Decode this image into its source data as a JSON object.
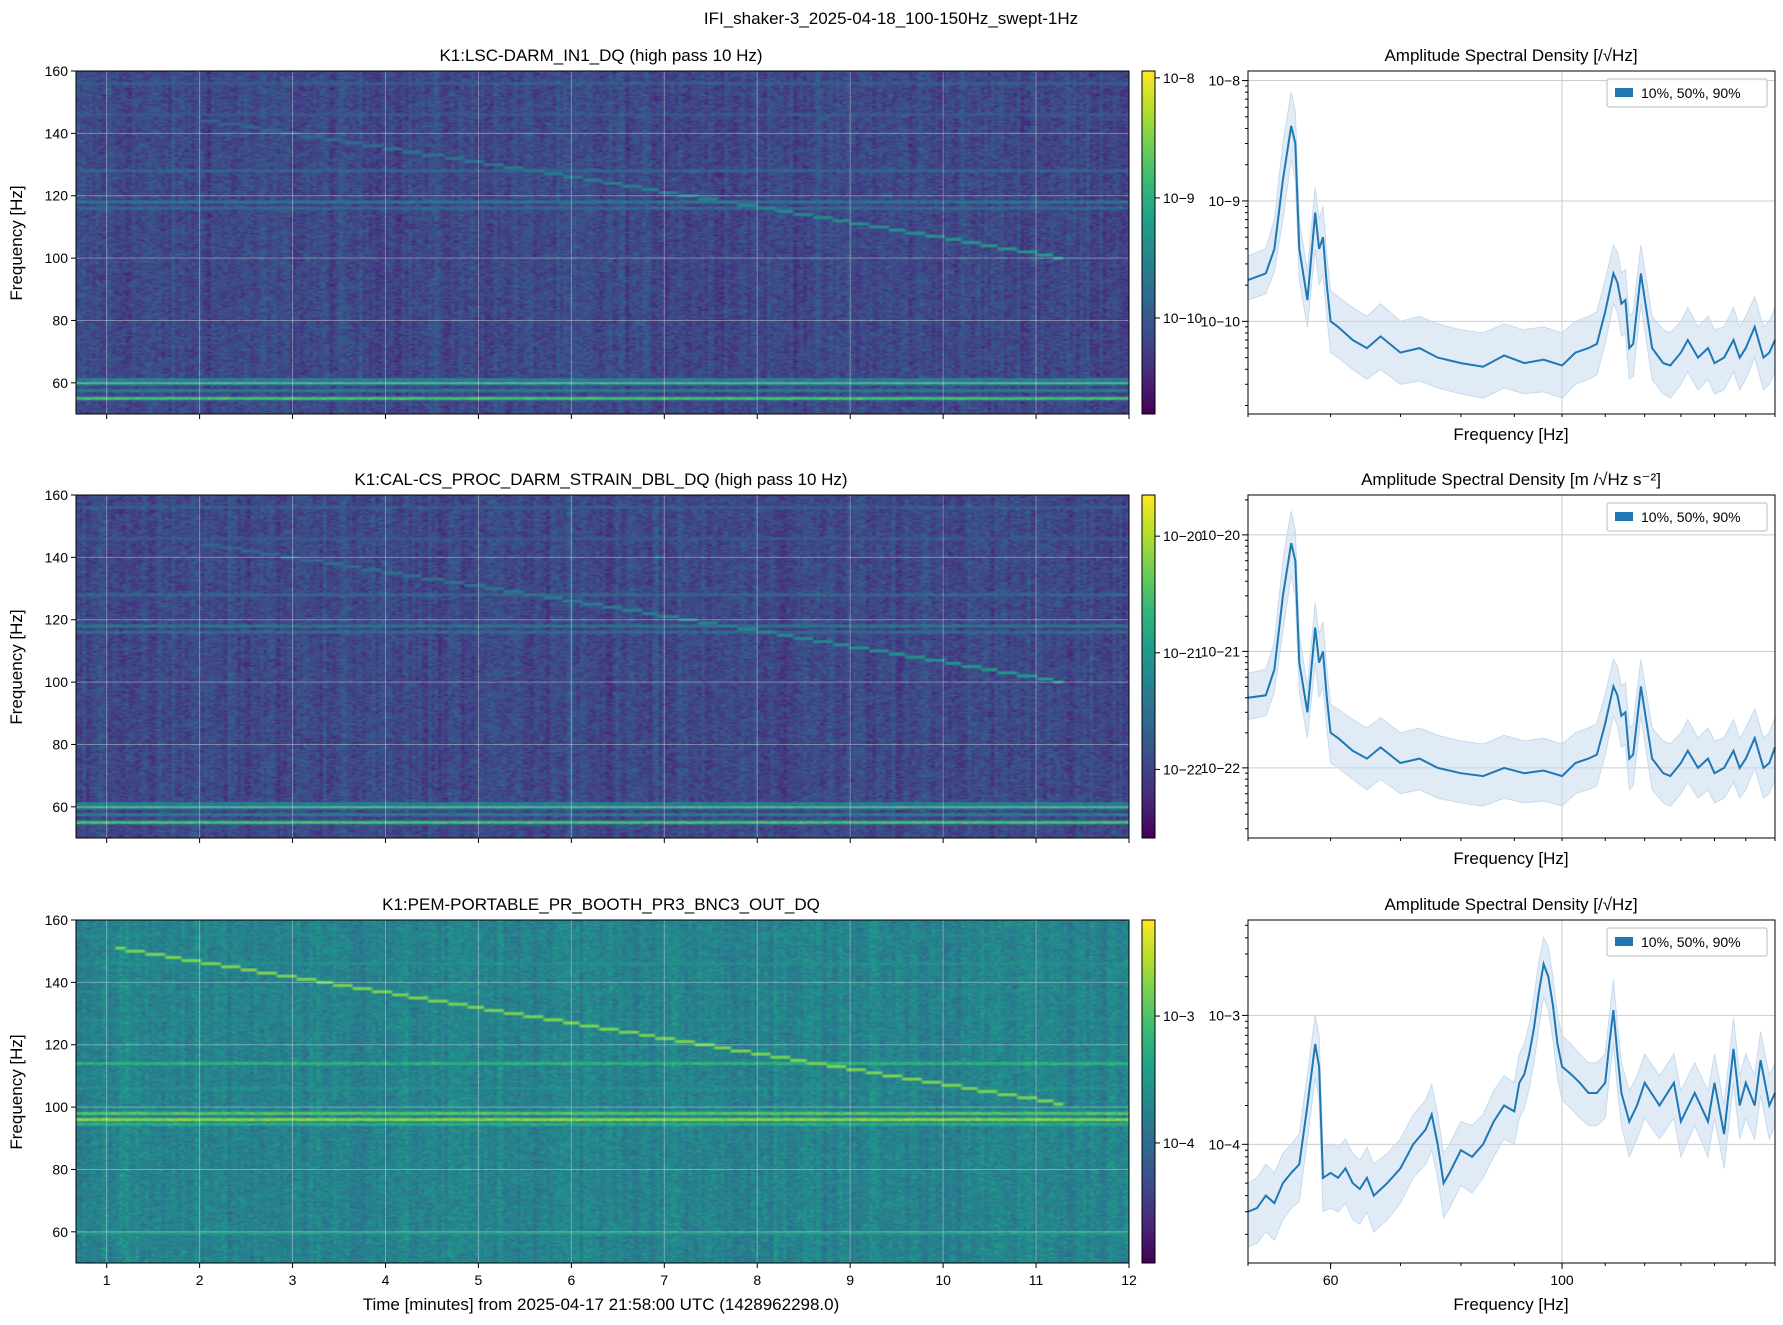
{
  "figure": {
    "suptitle": "IFI_shaker-3_2025-04-18_100-150Hz_swept-1Hz"
  },
  "colors": {
    "viridis_dark": "#440154",
    "viridis_mid": "#21918c",
    "viridis_bright": "#fde725",
    "asd_line": "#1f77b4",
    "asd_band": "#c6dbef",
    "grid": "#cccccc"
  },
  "chart_data": [
    {
      "type": "heatmap",
      "id": "spec1",
      "title": "K1:LSC-DARM_IN1_DQ (high pass 10 Hz)",
      "ylabel": "Frequency [Hz]",
      "xlabel": "",
      "xlim": [
        0.67,
        12.0
      ],
      "ylim": [
        50,
        160
      ],
      "xticks": [
        "1",
        "2",
        "3",
        "4",
        "5",
        "6",
        "7",
        "8",
        "9",
        "10",
        "11",
        "12"
      ],
      "yticks": [
        "60",
        "80",
        "100",
        "120",
        "140",
        "160"
      ],
      "colorbar": {
        "scale": "log",
        "ticks": [
          "10−8",
          "10−9",
          "10−10"
        ]
      },
      "lines": [
        {
          "f": 55,
          "level": 0.78
        },
        {
          "f": 59.8,
          "level": 0.62
        },
        {
          "f": 57.5,
          "level": 0.45
        },
        {
          "f": 61,
          "level": 0.5
        },
        {
          "f": 118,
          "level": 0.42
        },
        {
          "f": 116,
          "level": 0.38
        },
        {
          "f": 128,
          "level": 0.36
        },
        {
          "f": 146,
          "level": 0.3
        },
        {
          "f": 156,
          "level": 0.32
        }
      ],
      "sweep": [
        [
          2.0,
          144.5
        ],
        [
          5.6,
          128
        ],
        [
          8.3,
          115
        ],
        [
          11.3,
          100
        ]
      ],
      "sweep_level_start": 0.38,
      "sweep_level_end": 0.65,
      "noise_level": 0.22
    },
    {
      "type": "heatmap",
      "id": "spec2",
      "title": "K1:CAL-CS_PROC_DARM_STRAIN_DBL_DQ (high pass 10 Hz)",
      "ylabel": "Frequency [Hz]",
      "xlabel": "",
      "xlim": [
        0.67,
        12.0
      ],
      "ylim": [
        50,
        160
      ],
      "xticks": [
        "1",
        "2",
        "3",
        "4",
        "5",
        "6",
        "7",
        "8",
        "9",
        "10",
        "11",
        "12"
      ],
      "yticks": [
        "60",
        "80",
        "100",
        "120",
        "140",
        "160"
      ],
      "colorbar": {
        "scale": "log",
        "ticks": [
          "10−20",
          "10−21",
          "10−22"
        ]
      },
      "lines": [
        {
          "f": 55,
          "level": 0.78
        },
        {
          "f": 59.8,
          "level": 0.62
        },
        {
          "f": 57.5,
          "level": 0.45
        },
        {
          "f": 61,
          "level": 0.5
        },
        {
          "f": 118,
          "level": 0.42
        },
        {
          "f": 116,
          "level": 0.38
        },
        {
          "f": 128,
          "level": 0.36
        },
        {
          "f": 146,
          "level": 0.3
        },
        {
          "f": 156,
          "level": 0.32
        }
      ],
      "sweep": [
        [
          2.0,
          144.5
        ],
        [
          5.6,
          128
        ],
        [
          8.3,
          115
        ],
        [
          11.3,
          100
        ]
      ],
      "sweep_level_start": 0.38,
      "sweep_level_end": 0.65,
      "noise_level": 0.22
    },
    {
      "type": "heatmap",
      "id": "spec3",
      "title": "K1:PEM-PORTABLE_PR_BOOTH_PR3_BNC3_OUT_DQ",
      "ylabel": "Frequency [Hz]",
      "xlabel": "Time [minutes] from 2025-04-17 21:58:00 UTC (1428962298.0)",
      "xlim": [
        0.67,
        12.0
      ],
      "ylim": [
        50,
        160
      ],
      "xticks": [
        "1",
        "2",
        "3",
        "4",
        "5",
        "6",
        "7",
        "8",
        "9",
        "10",
        "11",
        "12"
      ],
      "yticks": [
        "60",
        "80",
        "100",
        "120",
        "140",
        "160"
      ],
      "colorbar": {
        "scale": "log",
        "ticks": [
          "10−3",
          "10−4"
        ]
      },
      "lines": [
        {
          "f": 96,
          "level": 0.92
        },
        {
          "f": 98,
          "level": 0.82
        },
        {
          "f": 94.5,
          "level": 0.7
        },
        {
          "f": 114,
          "level": 0.72
        },
        {
          "f": 59.5,
          "level": 0.6
        },
        {
          "f": 146,
          "level": 0.55
        },
        {
          "f": 137,
          "level": 0.5
        },
        {
          "f": 128,
          "level": 0.5
        },
        {
          "f": 106,
          "level": 0.55
        },
        {
          "f": 84,
          "level": 0.45
        },
        {
          "f": 77,
          "level": 0.42
        },
        {
          "f": 155,
          "level": 0.5
        }
      ],
      "sweep": [
        [
          1.1,
          151
        ],
        [
          11.3,
          101
        ]
      ],
      "sweep_level_start": 0.97,
      "sweep_level_end": 0.97,
      "noise_level": 0.45
    },
    {
      "type": "area",
      "id": "asd1",
      "title": "Amplitude Spectral Density [/√Hz]",
      "xlabel": "Frequency [Hz]",
      "xscale": "log",
      "yscale": "log",
      "xlim": [
        50,
        160
      ],
      "ylim": [
        1.7e-11,
        1.2e-08
      ],
      "xticks": [],
      "yticks": [
        "10−8",
        "10−9",
        "10−10"
      ],
      "legend": {
        "label": "10%, 50%, 90%",
        "loc": "upper right"
      },
      "x": [
        50,
        52,
        53,
        54,
        55,
        55.5,
        56,
        57,
        58,
        58.5,
        59,
        59.5,
        60,
        61,
        63,
        65,
        67,
        70,
        73,
        76,
        80,
        84,
        88,
        92,
        96,
        100,
        103,
        106,
        108,
        110,
        112,
        113,
        114,
        115,
        116,
        117,
        119,
        122,
        125,
        127,
        130,
        132,
        135,
        138,
        140,
        143,
        146,
        148,
        150,
        153,
        156,
        158,
        160
      ],
      "p50": [
        2.2e-10,
        2.5e-10,
        4e-10,
        1.5e-09,
        4.2e-09,
        3e-09,
        4e-10,
        1.5e-10,
        8e-10,
        4e-10,
        5e-10,
        2e-10,
        1e-10,
        9e-11,
        7e-11,
        6e-11,
        7.5e-11,
        5.5e-11,
        6e-11,
        5e-11,
        4.5e-11,
        4.2e-11,
        5.2e-11,
        4.5e-11,
        4.8e-11,
        4.3e-11,
        5.5e-11,
        6e-11,
        6.5e-11,
        1.2e-10,
        2.5e-10,
        2.1e-10,
        1.4e-10,
        1.5e-10,
        6e-11,
        6.5e-11,
        2.5e-10,
        6e-11,
        4.5e-11,
        4.3e-11,
        5.5e-11,
        7e-11,
        5e-11,
        6e-11,
        4.5e-11,
        5e-11,
        7e-11,
        5e-11,
        6e-11,
        9e-11,
        5e-11,
        5.5e-11,
        7e-11
      ],
      "p10": [
        1.5e-10,
        1.7e-10,
        2.6e-10,
        7e-10,
        2.2e-09,
        1.5e-09,
        2.2e-10,
        9e-11,
        4e-10,
        2e-10,
        2.5e-10,
        1.1e-10,
        5.5e-11,
        5e-11,
        4e-11,
        3.3e-11,
        4e-11,
        3e-11,
        3.2e-11,
        2.8e-11,
        2.5e-11,
        2.3e-11,
        2.8e-11,
        2.5e-11,
        2.6e-11,
        2.3e-11,
        3e-11,
        3.3e-11,
        3.6e-11,
        6.5e-11,
        1.4e-10,
        1.2e-10,
        7.5e-11,
        8e-11,
        3.3e-11,
        3.5e-11,
        1.4e-10,
        3.3e-11,
        2.5e-11,
        2.3e-11,
        3e-11,
        3.8e-11,
        2.7e-11,
        3.3e-11,
        2.5e-11,
        2.7e-11,
        3.8e-11,
        2.7e-11,
        3.3e-11,
        5e-11,
        2.7e-11,
        3e-11,
        3.8e-11
      ],
      "p90": [
        3.5e-10,
        4e-10,
        7e-10,
        3e-09,
        8e-09,
        5.5e-09,
        7e-10,
        2.6e-10,
        1.3e-09,
        7e-10,
        9e-10,
        3.5e-10,
        1.8e-10,
        1.6e-10,
        1.3e-10,
        1.1e-10,
        1.4e-10,
        1e-10,
        1.1e-10,
        9.5e-11,
        8.5e-11,
        8e-11,
        9.5e-11,
        8.5e-11,
        9e-11,
        8e-11,
        1e-10,
        1.1e-10,
        1.2e-10,
        2.2e-10,
        4.3e-10,
        3.8e-10,
        2.5e-10,
        2.7e-10,
        1.1e-10,
        1.2e-10,
        4.3e-10,
        1.1e-10,
        8.5e-11,
        8e-11,
        1e-10,
        1.3e-10,
        9e-11,
        1.1e-10,
        8.5e-11,
        9e-11,
        1.3e-10,
        9e-11,
        1.1e-10,
        1.6e-10,
        9e-11,
        1e-10,
        1.3e-10
      ]
    },
    {
      "type": "area",
      "id": "asd2",
      "title": "Amplitude Spectral Density [m /√Hz s⁻²]",
      "xlabel": "Frequency [Hz]",
      "xscale": "log",
      "yscale": "log",
      "xlim": [
        50,
        160
      ],
      "ylim": [
        2.5e-23,
        2.2e-20
      ],
      "xticks": [],
      "yticks": [
        "10−20",
        "10−21",
        "10−22"
      ],
      "legend": {
        "label": "10%, 50%, 90%",
        "loc": "upper right"
      },
      "x": [
        50,
        52,
        53,
        54,
        55,
        55.5,
        56,
        57,
        58,
        58.5,
        59,
        59.5,
        60,
        61,
        63,
        65,
        67,
        70,
        73,
        76,
        80,
        84,
        88,
        92,
        96,
        100,
        103,
        106,
        108,
        110,
        112,
        113,
        114,
        115,
        116,
        117,
        119,
        122,
        125,
        127,
        130,
        132,
        135,
        138,
        140,
        143,
        146,
        148,
        150,
        153,
        156,
        158,
        160
      ],
      "p50": [
        4e-22,
        4.2e-22,
        7e-22,
        3e-21,
        8.5e-21,
        6e-21,
        8e-22,
        3e-22,
        1.6e-21,
        8e-22,
        1e-21,
        4e-22,
        2e-22,
        1.8e-22,
        1.4e-22,
        1.2e-22,
        1.5e-22,
        1.1e-22,
        1.2e-22,
        1e-22,
        9e-23,
        8.5e-23,
        1e-22,
        9e-23,
        9.5e-23,
        8.5e-23,
        1.1e-22,
        1.2e-22,
        1.3e-22,
        2.4e-22,
        5e-22,
        4.2e-22,
        2.8e-22,
        3e-22,
        1.2e-22,
        1.3e-22,
        5e-22,
        1.2e-22,
        9e-23,
        8.5e-23,
        1.1e-22,
        1.4e-22,
        1e-22,
        1.2e-22,
        9e-23,
        1e-22,
        1.4e-22,
        1e-22,
        1.2e-22,
        1.8e-22,
        1e-22,
        1.1e-22,
        1.5e-22
      ],
      "p10": [
        2.6e-22,
        2.8e-22,
        4.5e-22,
        1.5e-21,
        4.5e-21,
        3e-21,
        4.5e-22,
        1.8e-22,
        8e-22,
        4e-22,
        5e-22,
        2.2e-22,
        1.1e-22,
        1e-22,
        8e-23,
        6.5e-23,
        8e-23,
        6e-23,
        6.5e-23,
        5.5e-23,
        5e-23,
        4.7e-23,
        5.5e-23,
        5e-23,
        5.2e-23,
        4.7e-23,
        6e-23,
        6.5e-23,
        7e-23,
        1.3e-22,
        2.8e-22,
        2.3e-22,
        1.5e-22,
        1.6e-22,
        6.5e-23,
        7e-23,
        2.8e-22,
        6.5e-23,
        5e-23,
        4.7e-23,
        6e-23,
        7.5e-23,
        5.5e-23,
        6.5e-23,
        5e-23,
        5.5e-23,
        7.5e-23,
        5.5e-23,
        6.5e-23,
        1e-22,
        5.5e-23,
        6e-23,
        8e-23
      ],
      "p90": [
        6.5e-22,
        7e-22,
        1.2e-21,
        6e-21,
        1.6e-20,
        1.1e-20,
        1.4e-21,
        5e-22,
        2.6e-21,
        1.4e-21,
        1.8e-21,
        7e-22,
        3.5e-22,
        3.2e-22,
        2.6e-22,
        2.2e-22,
        2.7e-22,
        2e-22,
        2.2e-22,
        1.9e-22,
        1.7e-22,
        1.6e-22,
        1.9e-22,
        1.7e-22,
        1.8e-22,
        1.6e-22,
        2e-22,
        2.2e-22,
        2.4e-22,
        4.3e-22,
        8.5e-22,
        7.5e-22,
        5e-22,
        5.4e-22,
        2.2e-22,
        2.4e-22,
        8.5e-22,
        2.2e-22,
        1.7e-22,
        1.6e-22,
        2e-22,
        2.6e-22,
        1.8e-22,
        2.2e-22,
        1.7e-22,
        1.8e-22,
        2.6e-22,
        1.8e-22,
        2.2e-22,
        3.2e-22,
        1.8e-22,
        2e-22,
        2.7e-22
      ]
    },
    {
      "type": "area",
      "id": "asd3",
      "title": "Amplitude Spectral Density [/√Hz]",
      "xlabel": "Frequency [Hz]",
      "xscale": "log",
      "yscale": "log",
      "xlim": [
        50,
        160
      ],
      "ylim": [
        1.2e-05,
        0.0055
      ],
      "xticks": [
        {
          "v": 60,
          "label": "60"
        },
        {
          "v": 100,
          "label": "100"
        }
      ],
      "yticks": [
        "10−3",
        "10−4"
      ],
      "legend": {
        "label": "10%, 50%, 90%",
        "loc": "upper right"
      },
      "x": [
        50,
        51,
        52,
        53,
        54,
        55,
        56,
        57,
        58,
        58.5,
        59,
        60,
        61,
        62,
        63,
        64,
        65,
        66,
        68,
        70,
        72,
        74,
        75,
        76,
        77,
        78,
        80,
        82,
        84,
        86,
        88,
        90,
        91,
        92,
        93,
        94,
        95,
        96,
        97,
        98,
        99,
        100,
        102,
        104,
        106,
        108,
        110,
        111,
        112,
        113,
        114,
        116,
        118,
        120,
        124,
        128,
        130,
        134,
        138,
        140,
        143,
        146,
        148,
        150,
        153,
        155,
        158,
        160
      ],
      "p50": [
        3e-05,
        3.2e-05,
        4e-05,
        3.5e-05,
        5e-05,
        6e-05,
        7e-05,
        0.0002,
        0.0006,
        0.0004,
        5.5e-05,
        6e-05,
        5.5e-05,
        6.5e-05,
        5e-05,
        4.5e-05,
        5.5e-05,
        4e-05,
        5e-05,
        6.5e-05,
        0.0001,
        0.00013,
        0.00017,
        0.0001,
        5e-05,
        6e-05,
        9e-05,
        8e-05,
        0.0001,
        0.00015,
        0.0002,
        0.00018,
        0.0003,
        0.00035,
        0.0005,
        0.0008,
        0.0015,
        0.0025,
        0.002,
        0.0012,
        0.0006,
        0.0004,
        0.00035,
        0.0003,
        0.00025,
        0.00025,
        0.0003,
        0.0006,
        0.0011,
        0.0005,
        0.00025,
        0.00015,
        0.0002,
        0.0003,
        0.0002,
        0.0003,
        0.00015,
        0.00025,
        0.00015,
        0.0003,
        0.00012,
        0.00055,
        0.0002,
        0.0003,
        0.0002,
        0.00045,
        0.0002,
        0.00025
      ],
      "p10": [
        1.6e-05,
        1.7e-05,
        2.1e-05,
        1.8e-05,
        2.6e-05,
        3.2e-05,
        3.6e-05,
        0.00011,
        0.00033,
        0.00022,
        3e-05,
        3.2e-05,
        3e-05,
        3.5e-05,
        2.6e-05,
        2.4e-05,
        3e-05,
        2.1e-05,
        2.6e-05,
        3.5e-05,
        5.5e-05,
        7e-05,
        9e-05,
        5.5e-05,
        2.7e-05,
        3.2e-05,
        4.8e-05,
        4.2e-05,
        5.5e-05,
        8e-05,
        0.00011,
        0.0001,
        0.00016,
        0.00019,
        0.00027,
        0.00043,
        0.0008,
        0.0014,
        0.0011,
        0.00065,
        0.00033,
        0.00022,
        0.00019,
        0.00016,
        0.00014,
        0.00014,
        0.00016,
        0.00033,
        0.0006,
        0.00027,
        0.00014,
        8e-05,
        0.00011,
        0.00016,
        0.00011,
        0.00016,
        8e-05,
        0.00014,
        8e-05,
        0.00016,
        6.5e-05,
        0.0003,
        0.00011,
        0.00016,
        0.00011,
        0.00024,
        0.00011,
        0.00014
      ],
      "p90": [
        5e-05,
        5.5e-05,
        7e-05,
        6e-05,
        8.5e-05,
        0.0001,
        0.00012,
        0.00035,
        0.001,
        0.0007,
        9.5e-05,
        0.0001,
        9.5e-05,
        0.00011,
        8.5e-05,
        7.5e-05,
        9.5e-05,
        7e-05,
        8.5e-05,
        0.00011,
        0.00017,
        0.00022,
        0.00029,
        0.00017,
        8.5e-05,
        0.0001,
        0.00015,
        0.00014,
        0.00017,
        0.00026,
        0.00034,
        0.0003,
        0.0005,
        0.0006,
        0.00085,
        0.0014,
        0.0026,
        0.004,
        0.0034,
        0.002,
        0.001,
        0.0007,
        0.0006,
        0.0005,
        0.00043,
        0.00043,
        0.0005,
        0.001,
        0.0019,
        0.00085,
        0.00043,
        0.00026,
        0.00034,
        0.0005,
        0.00034,
        0.0005,
        0.00026,
        0.00043,
        0.00026,
        0.0005,
        0.0002,
        0.00095,
        0.00034,
        0.0005,
        0.00034,
        0.00075,
        0.00034,
        0.00043
      ]
    }
  ]
}
